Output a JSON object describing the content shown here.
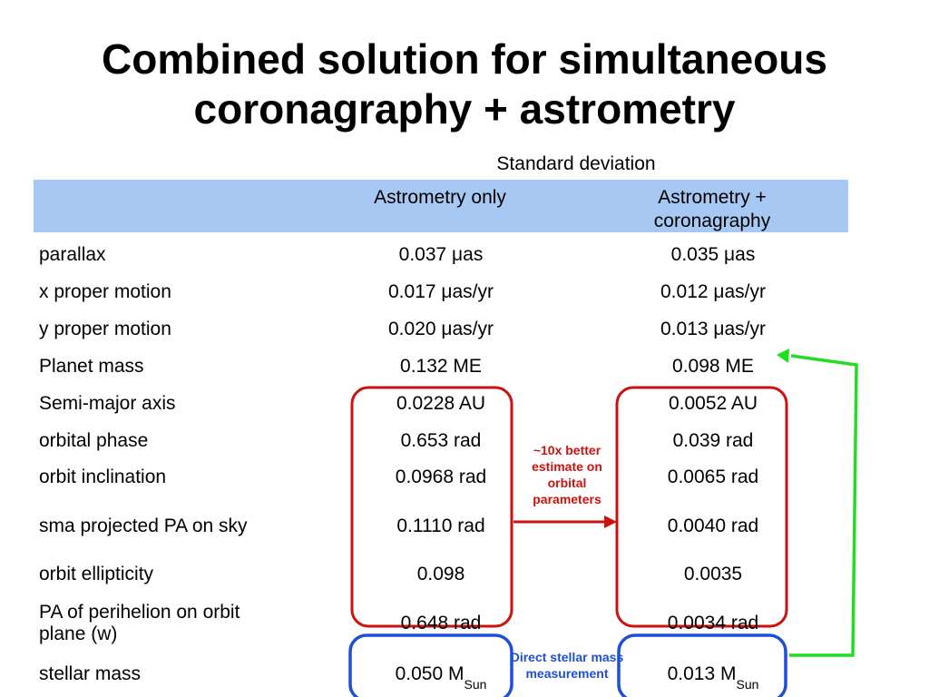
{
  "title": {
    "line1": "Combined solution for simultaneous",
    "line2": "coronagraphy + astrometry"
  },
  "header": {
    "group_label": "Standard deviation",
    "col_a": "Astrometry only",
    "col_b_line1": "Astrometry +",
    "col_b_line2": "coronagraphy"
  },
  "rows": [
    {
      "label": "parallax",
      "a": "0.037 μas",
      "b": "0.035 μas"
    },
    {
      "label": "x proper motion",
      "a": "0.017 μas/yr",
      "b": "0.012 μas/yr"
    },
    {
      "label": "y proper motion",
      "a": "0.020 μas/yr",
      "b": "0.013 μas/yr"
    },
    {
      "label": "Planet mass",
      "a": "0.132 ME",
      "b": "0.098 ME"
    },
    {
      "label": "Semi-major axis",
      "a": "0.0228 AU",
      "b": "0.0052 AU"
    },
    {
      "label": "orbital phase",
      "a": "0.653 rad",
      "b": "0.039 rad"
    },
    {
      "label": "orbit inclination",
      "a": "0.0968 rad",
      "b": "0.0065 rad"
    },
    {
      "label": "sma projected PA on sky",
      "a": "0.1110 rad",
      "b": "0.0040 rad"
    },
    {
      "label": "orbit ellipticity",
      "a": "0.098",
      "b": "0.0035"
    },
    {
      "label_line1": "PA of perihelion on orbit",
      "label_line2": "plane (w)",
      "a": "0.648 rad",
      "b": "0.0034 rad"
    },
    {
      "label": "stellar mass",
      "a": "0.050 M",
      "a_sub": "Sun",
      "b": "0.013 M",
      "b_sub": "Sun"
    }
  ],
  "annotations": {
    "orbital_note": [
      "~10x better",
      "estimate on",
      "orbital",
      "parameters"
    ],
    "stellar_note": [
      "Direct stellar mass",
      "measurement"
    ]
  },
  "colors": {
    "header_band": "#a7c8f2",
    "orbital_box": "#cc1111",
    "stellar_box": "#1f4fd8",
    "mass_arrow": "#22dd22",
    "orbital_note_text": "#cc1111",
    "stellar_note_text": "#1f4fd8"
  }
}
